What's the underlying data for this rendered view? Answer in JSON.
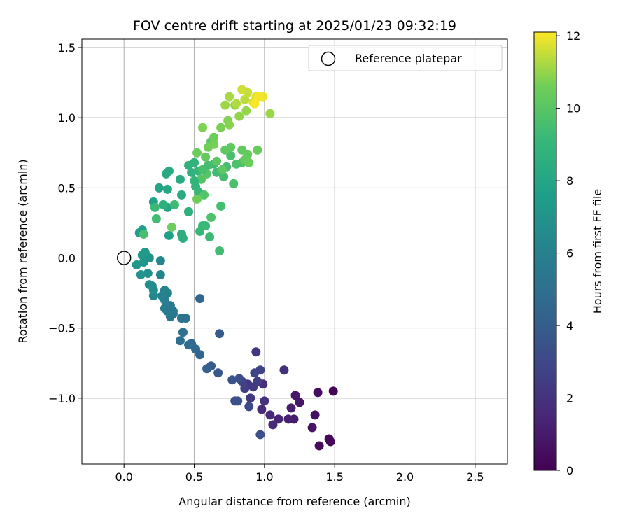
{
  "chart_data": {
    "type": "scatter",
    "title": "FOV centre drift starting at 2025/01/23 09:32:19",
    "xlabel": "Angular distance from reference (arcmin)",
    "ylabel": "Rotation from reference (arcmin)",
    "xlim": [
      -0.3,
      2.73
    ],
    "ylim": [
      -1.47,
      1.56
    ],
    "xticks": [
      0.0,
      0.5,
      1.0,
      1.5,
      2.0,
      2.5
    ],
    "xtick_labels": [
      "0.0",
      "0.5",
      "1.0",
      "1.5",
      "2.0",
      "2.5"
    ],
    "yticks": [
      -1.0,
      -0.5,
      0.0,
      0.5,
      1.0,
      1.5
    ],
    "ytick_labels": [
      "−1.0",
      "−0.5",
      "0.0",
      "0.5",
      "1.0",
      "1.5"
    ],
    "grid": true,
    "legend": {
      "location": "upper right",
      "entries": [
        "Reference platepar"
      ]
    },
    "reference_point": {
      "x": 0.0,
      "y": 0.0,
      "label": "Reference platepar"
    },
    "colorbar": {
      "label": "Hours from first FF file",
      "range": [
        0,
        12.1
      ],
      "ticks": [
        0,
        2,
        4,
        6,
        8,
        10,
        12
      ],
      "tick_labels": [
        "0",
        "2",
        "4",
        "6",
        "8",
        "10",
        "12"
      ],
      "colormap": "viridis"
    },
    "points": [
      {
        "x": 1.49,
        "y": -0.95,
        "h": 0.1
      },
      {
        "x": 1.47,
        "y": -1.31,
        "h": 0.2
      },
      {
        "x": 1.46,
        "y": -1.29,
        "h": 0.3
      },
      {
        "x": 1.39,
        "y": -1.34,
        "h": 0.4
      },
      {
        "x": 1.38,
        "y": -0.96,
        "h": 0.5
      },
      {
        "x": 1.36,
        "y": -1.12,
        "h": 0.6
      },
      {
        "x": 1.34,
        "y": -1.21,
        "h": 0.7
      },
      {
        "x": 1.25,
        "y": -1.03,
        "h": 0.8
      },
      {
        "x": 1.22,
        "y": -0.98,
        "h": 0.9
      },
      {
        "x": 1.21,
        "y": -1.15,
        "h": 1.0
      },
      {
        "x": 1.19,
        "y": -1.07,
        "h": 1.1
      },
      {
        "x": 1.17,
        "y": -1.15,
        "h": 1.2
      },
      {
        "x": 1.1,
        "y": -1.15,
        "h": 1.35
      },
      {
        "x": 1.06,
        "y": -1.19,
        "h": 1.5
      },
      {
        "x": 1.04,
        "y": -1.12,
        "h": 1.6
      },
      {
        "x": 0.98,
        "y": -1.08,
        "h": 1.7
      },
      {
        "x": 0.99,
        "y": -0.9,
        "h": 1.8
      },
      {
        "x": 1.14,
        "y": -0.8,
        "h": 1.9
      },
      {
        "x": 1.0,
        "y": -1.02,
        "h": 2.0
      },
      {
        "x": 0.94,
        "y": -0.67,
        "h": 2.1
      },
      {
        "x": 0.88,
        "y": -0.9,
        "h": 2.2
      },
      {
        "x": 0.9,
        "y": -1.0,
        "h": 2.3
      },
      {
        "x": 0.92,
        "y": -0.92,
        "h": 2.4
      },
      {
        "x": 0.95,
        "y": -0.88,
        "h": 2.5
      },
      {
        "x": 0.86,
        "y": -0.93,
        "h": 2.6
      },
      {
        "x": 0.84,
        "y": -0.88,
        "h": 2.7
      },
      {
        "x": 0.97,
        "y": -0.8,
        "h": 2.8
      },
      {
        "x": 0.93,
        "y": -0.82,
        "h": 2.9
      },
      {
        "x": 0.89,
        "y": -1.06,
        "h": 3.0
      },
      {
        "x": 0.82,
        "y": -0.86,
        "h": 3.1
      },
      {
        "x": 0.79,
        "y": -1.02,
        "h": 3.2
      },
      {
        "x": 0.97,
        "y": -1.26,
        "h": 3.3
      },
      {
        "x": 0.81,
        "y": -1.02,
        "h": 3.4
      },
      {
        "x": 0.77,
        "y": -0.87,
        "h": 3.5
      },
      {
        "x": 0.67,
        "y": -0.82,
        "h": 3.7
      },
      {
        "x": 0.68,
        "y": -0.54,
        "h": 3.9
      },
      {
        "x": 0.62,
        "y": -0.77,
        "h": 4.0
      },
      {
        "x": 0.59,
        "y": -0.79,
        "h": 4.2
      },
      {
        "x": 0.54,
        "y": -0.69,
        "h": 4.4
      },
      {
        "x": 0.54,
        "y": -0.29,
        "h": 4.5
      },
      {
        "x": 0.51,
        "y": -0.65,
        "h": 4.6
      },
      {
        "x": 0.48,
        "y": -0.61,
        "h": 4.7
      },
      {
        "x": 0.46,
        "y": -0.62,
        "h": 4.8
      },
      {
        "x": 0.4,
        "y": -0.59,
        "h": 4.9
      },
      {
        "x": 0.42,
        "y": -0.53,
        "h": 5.0
      },
      {
        "x": 0.44,
        "y": -0.43,
        "h": 5.1
      },
      {
        "x": 0.41,
        "y": -0.43,
        "h": 5.2
      },
      {
        "x": 0.35,
        "y": -0.38,
        "h": 5.3
      },
      {
        "x": 0.33,
        "y": -0.42,
        "h": 5.35
      },
      {
        "x": 0.35,
        "y": -0.4,
        "h": 5.4
      },
      {
        "x": 0.33,
        "y": -0.34,
        "h": 5.5
      },
      {
        "x": 0.31,
        "y": -0.38,
        "h": 5.6
      },
      {
        "x": 0.29,
        "y": -0.36,
        "h": 5.7
      },
      {
        "x": 0.29,
        "y": -0.3,
        "h": 5.8
      },
      {
        "x": 0.31,
        "y": -0.25,
        "h": 5.9
      },
      {
        "x": 0.27,
        "y": -0.27,
        "h": 6.0
      },
      {
        "x": 0.29,
        "y": -0.23,
        "h": 6.1
      },
      {
        "x": 0.26,
        "y": -0.12,
        "h": 6.2
      },
      {
        "x": 0.26,
        "y": -0.02,
        "h": 6.3
      },
      {
        "x": 0.21,
        "y": -0.27,
        "h": 6.4
      },
      {
        "x": 0.2,
        "y": -0.2,
        "h": 6.5
      },
      {
        "x": 0.21,
        "y": -0.23,
        "h": 6.6
      },
      {
        "x": 0.18,
        "y": -0.19,
        "h": 6.7
      },
      {
        "x": 0.17,
        "y": -0.11,
        "h": 6.8
      },
      {
        "x": 0.18,
        "y": 0.0,
        "h": 6.9
      },
      {
        "x": 0.12,
        "y": -0.12,
        "h": 7.0
      },
      {
        "x": 0.14,
        "y": -0.03,
        "h": 7.1
      },
      {
        "x": 0.09,
        "y": -0.05,
        "h": 7.2
      },
      {
        "x": 0.13,
        "y": 0.02,
        "h": 7.3
      },
      {
        "x": 0.15,
        "y": 0.04,
        "h": 7.4
      },
      {
        "x": 0.11,
        "y": 0.18,
        "h": 7.5
      },
      {
        "x": 0.13,
        "y": 0.2,
        "h": 7.6
      },
      {
        "x": 0.32,
        "y": 0.16,
        "h": 7.7
      },
      {
        "x": 0.21,
        "y": 0.4,
        "h": 7.8
      },
      {
        "x": 0.25,
        "y": 0.5,
        "h": 7.9
      },
      {
        "x": 0.31,
        "y": 0.36,
        "h": 8.0
      },
      {
        "x": 0.31,
        "y": 0.49,
        "h": 8.1
      },
      {
        "x": 0.3,
        "y": 0.6,
        "h": 8.15
      },
      {
        "x": 0.32,
        "y": 0.62,
        "h": 8.2
      },
      {
        "x": 0.4,
        "y": 0.56,
        "h": 8.3
      },
      {
        "x": 0.41,
        "y": 0.45,
        "h": 8.4
      },
      {
        "x": 0.41,
        "y": 0.17,
        "h": 8.5
      },
      {
        "x": 0.42,
        "y": 0.14,
        "h": 8.55
      },
      {
        "x": 0.46,
        "y": 0.33,
        "h": 8.6
      },
      {
        "x": 0.48,
        "y": 0.61,
        "h": 8.7
      },
      {
        "x": 0.46,
        "y": 0.66,
        "h": 8.8
      },
      {
        "x": 0.5,
        "y": 0.68,
        "h": 8.85
      },
      {
        "x": 0.51,
        "y": 0.51,
        "h": 8.9
      },
      {
        "x": 0.53,
        "y": 0.62,
        "h": 9.0
      },
      {
        "x": 0.53,
        "y": 0.47,
        "h": 9.05
      },
      {
        "x": 0.54,
        "y": 0.19,
        "h": 9.1
      },
      {
        "x": 0.56,
        "y": 0.23,
        "h": 9.15
      },
      {
        "x": 0.58,
        "y": 0.23,
        "h": 9.2
      },
      {
        "x": 0.61,
        "y": 0.15,
        "h": 9.25
      },
      {
        "x": 0.64,
        "y": 0.67,
        "h": 9.3
      },
      {
        "x": 0.66,
        "y": 0.61,
        "h": 9.35
      },
      {
        "x": 0.68,
        "y": 0.05,
        "h": 9.4
      },
      {
        "x": 0.69,
        "y": 0.37,
        "h": 9.45
      },
      {
        "x": 0.71,
        "y": 0.58,
        "h": 9.5
      },
      {
        "x": 0.73,
        "y": 0.65,
        "h": 9.55
      },
      {
        "x": 0.76,
        "y": 0.73,
        "h": 9.6
      },
      {
        "x": 0.78,
        "y": 0.53,
        "h": 9.65
      },
      {
        "x": 0.8,
        "y": 0.67,
        "h": 9.7
      },
      {
        "x": 0.84,
        "y": 0.68,
        "h": 9.75
      },
      {
        "x": 0.62,
        "y": 0.29,
        "h": 9.8
      },
      {
        "x": 0.57,
        "y": 0.45,
        "h": 9.85
      },
      {
        "x": 0.55,
        "y": 0.56,
        "h": 9.9
      },
      {
        "x": 0.59,
        "y": 0.6,
        "h": 9.95
      },
      {
        "x": 0.62,
        "y": 0.83,
        "h": 10.0
      },
      {
        "x": 0.66,
        "y": 0.69,
        "h": 10.05
      },
      {
        "x": 0.7,
        "y": 0.63,
        "h": 10.1
      },
      {
        "x": 0.72,
        "y": 0.77,
        "h": 10.15
      },
      {
        "x": 0.76,
        "y": 0.79,
        "h": 10.2
      },
      {
        "x": 0.84,
        "y": 0.77,
        "h": 10.25
      },
      {
        "x": 0.86,
        "y": 0.7,
        "h": 10.3
      },
      {
        "x": 0.88,
        "y": 0.74,
        "h": 10.35
      },
      {
        "x": 0.95,
        "y": 0.77,
        "h": 10.4
      },
      {
        "x": 0.89,
        "y": 0.68,
        "h": 10.45
      },
      {
        "x": 0.34,
        "y": 0.22,
        "h": 10.5
      },
      {
        "x": 0.52,
        "y": 0.42,
        "h": 10.55
      },
      {
        "x": 0.6,
        "y": 0.79,
        "h": 10.6
      },
      {
        "x": 0.64,
        "y": 0.81,
        "h": 10.65
      },
      {
        "x": 0.69,
        "y": 0.93,
        "h": 10.7
      },
      {
        "x": 0.56,
        "y": 0.93,
        "h": 10.75
      },
      {
        "x": 0.74,
        "y": 0.98,
        "h": 10.8
      },
      {
        "x": 0.75,
        "y": 0.95,
        "h": 10.85
      },
      {
        "x": 0.79,
        "y": 1.09,
        "h": 10.9
      },
      {
        "x": 0.82,
        "y": 1.01,
        "h": 10.95
      },
      {
        "x": 0.87,
        "y": 1.05,
        "h": 11.0
      },
      {
        "x": 1.04,
        "y": 1.03,
        "h": 11.05
      },
      {
        "x": 0.72,
        "y": 1.09,
        "h": 11.1
      },
      {
        "x": 0.75,
        "y": 1.15,
        "h": 11.2
      },
      {
        "x": 0.8,
        "y": 1.1,
        "h": 11.3
      },
      {
        "x": 0.86,
        "y": 1.13,
        "h": 11.4
      },
      {
        "x": 0.88,
        "y": 1.18,
        "h": 11.5
      },
      {
        "x": 0.84,
        "y": 1.2,
        "h": 11.6
      },
      {
        "x": 0.92,
        "y": 1.11,
        "h": 11.7
      },
      {
        "x": 0.94,
        "y": 1.15,
        "h": 11.8
      },
      {
        "x": 0.99,
        "y": 1.15,
        "h": 11.9
      },
      {
        "x": 0.96,
        "y": 1.15,
        "h": 12.0
      },
      {
        "x": 0.93,
        "y": 1.1,
        "h": 12.05
      },
      {
        "x": 0.58,
        "y": 0.72,
        "h": 10.35
      },
      {
        "x": 0.52,
        "y": 0.75,
        "h": 10.45
      },
      {
        "x": 0.64,
        "y": 0.86,
        "h": 10.55
      },
      {
        "x": 0.56,
        "y": 0.63,
        "h": 9.6
      },
      {
        "x": 0.6,
        "y": 0.66,
        "h": 9.5
      },
      {
        "x": 0.5,
        "y": 0.55,
        "h": 8.95
      },
      {
        "x": 0.36,
        "y": 0.38,
        "h": 9.3
      },
      {
        "x": 0.22,
        "y": 0.36,
        "h": 9.2
      },
      {
        "x": 0.28,
        "y": 0.38,
        "h": 8.6
      },
      {
        "x": 0.14,
        "y": 0.17,
        "h": 9.6
      },
      {
        "x": 0.23,
        "y": 0.28,
        "h": 9.4
      }
    ]
  }
}
